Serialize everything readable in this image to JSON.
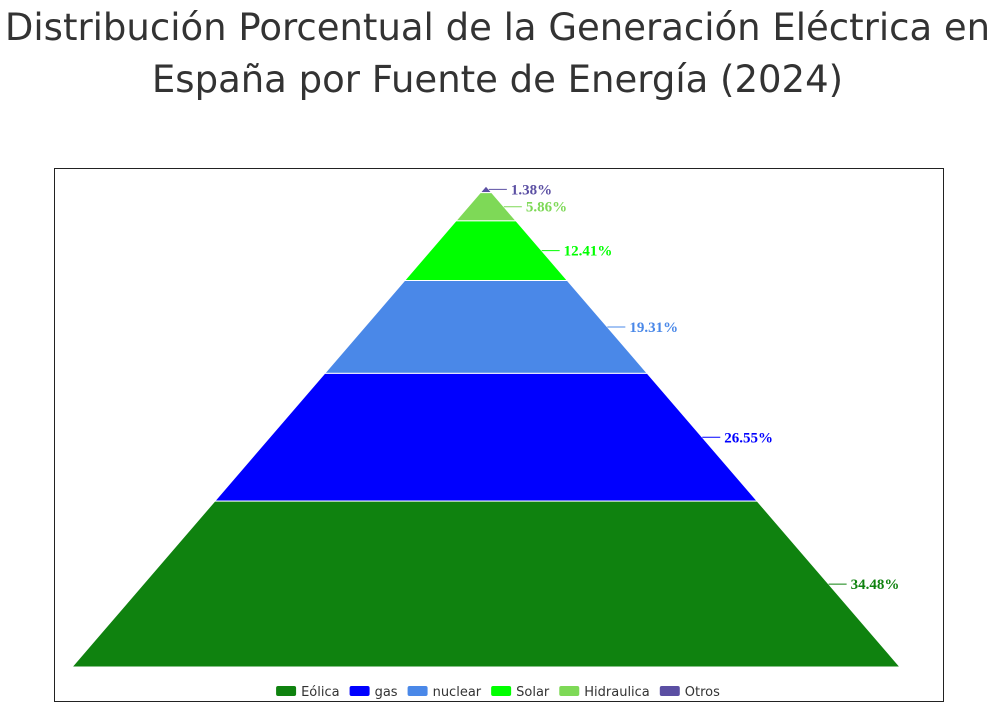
{
  "chart_data": {
    "type": "funnel",
    "title": "Distribución Porcentual de la Generación Eléctrica en España por Fuente de Energía (2024)",
    "segments": [
      {
        "name": "Eólica",
        "value": 34.48,
        "label": "34.48%",
        "color": "#0f820f"
      },
      {
        "name": "gas",
        "value": 26.55,
        "label": "26.55%",
        "color": "#0000ff"
      },
      {
        "name": "nuclear",
        "value": 19.31,
        "label": "19.31%",
        "color": "#4a88e8"
      },
      {
        "name": "Solar",
        "value": 12.41,
        "label": "12.41%",
        "color": "#00ff00"
      },
      {
        "name": "Hidraulica",
        "value": 5.86,
        "label": "5.86%",
        "color": "#7ed957"
      },
      {
        "name": "Otros",
        "value": 1.38,
        "label": "1.38%",
        "color": "#5b4fa3"
      }
    ],
    "legend": {
      "position": "bottom-center"
    }
  }
}
